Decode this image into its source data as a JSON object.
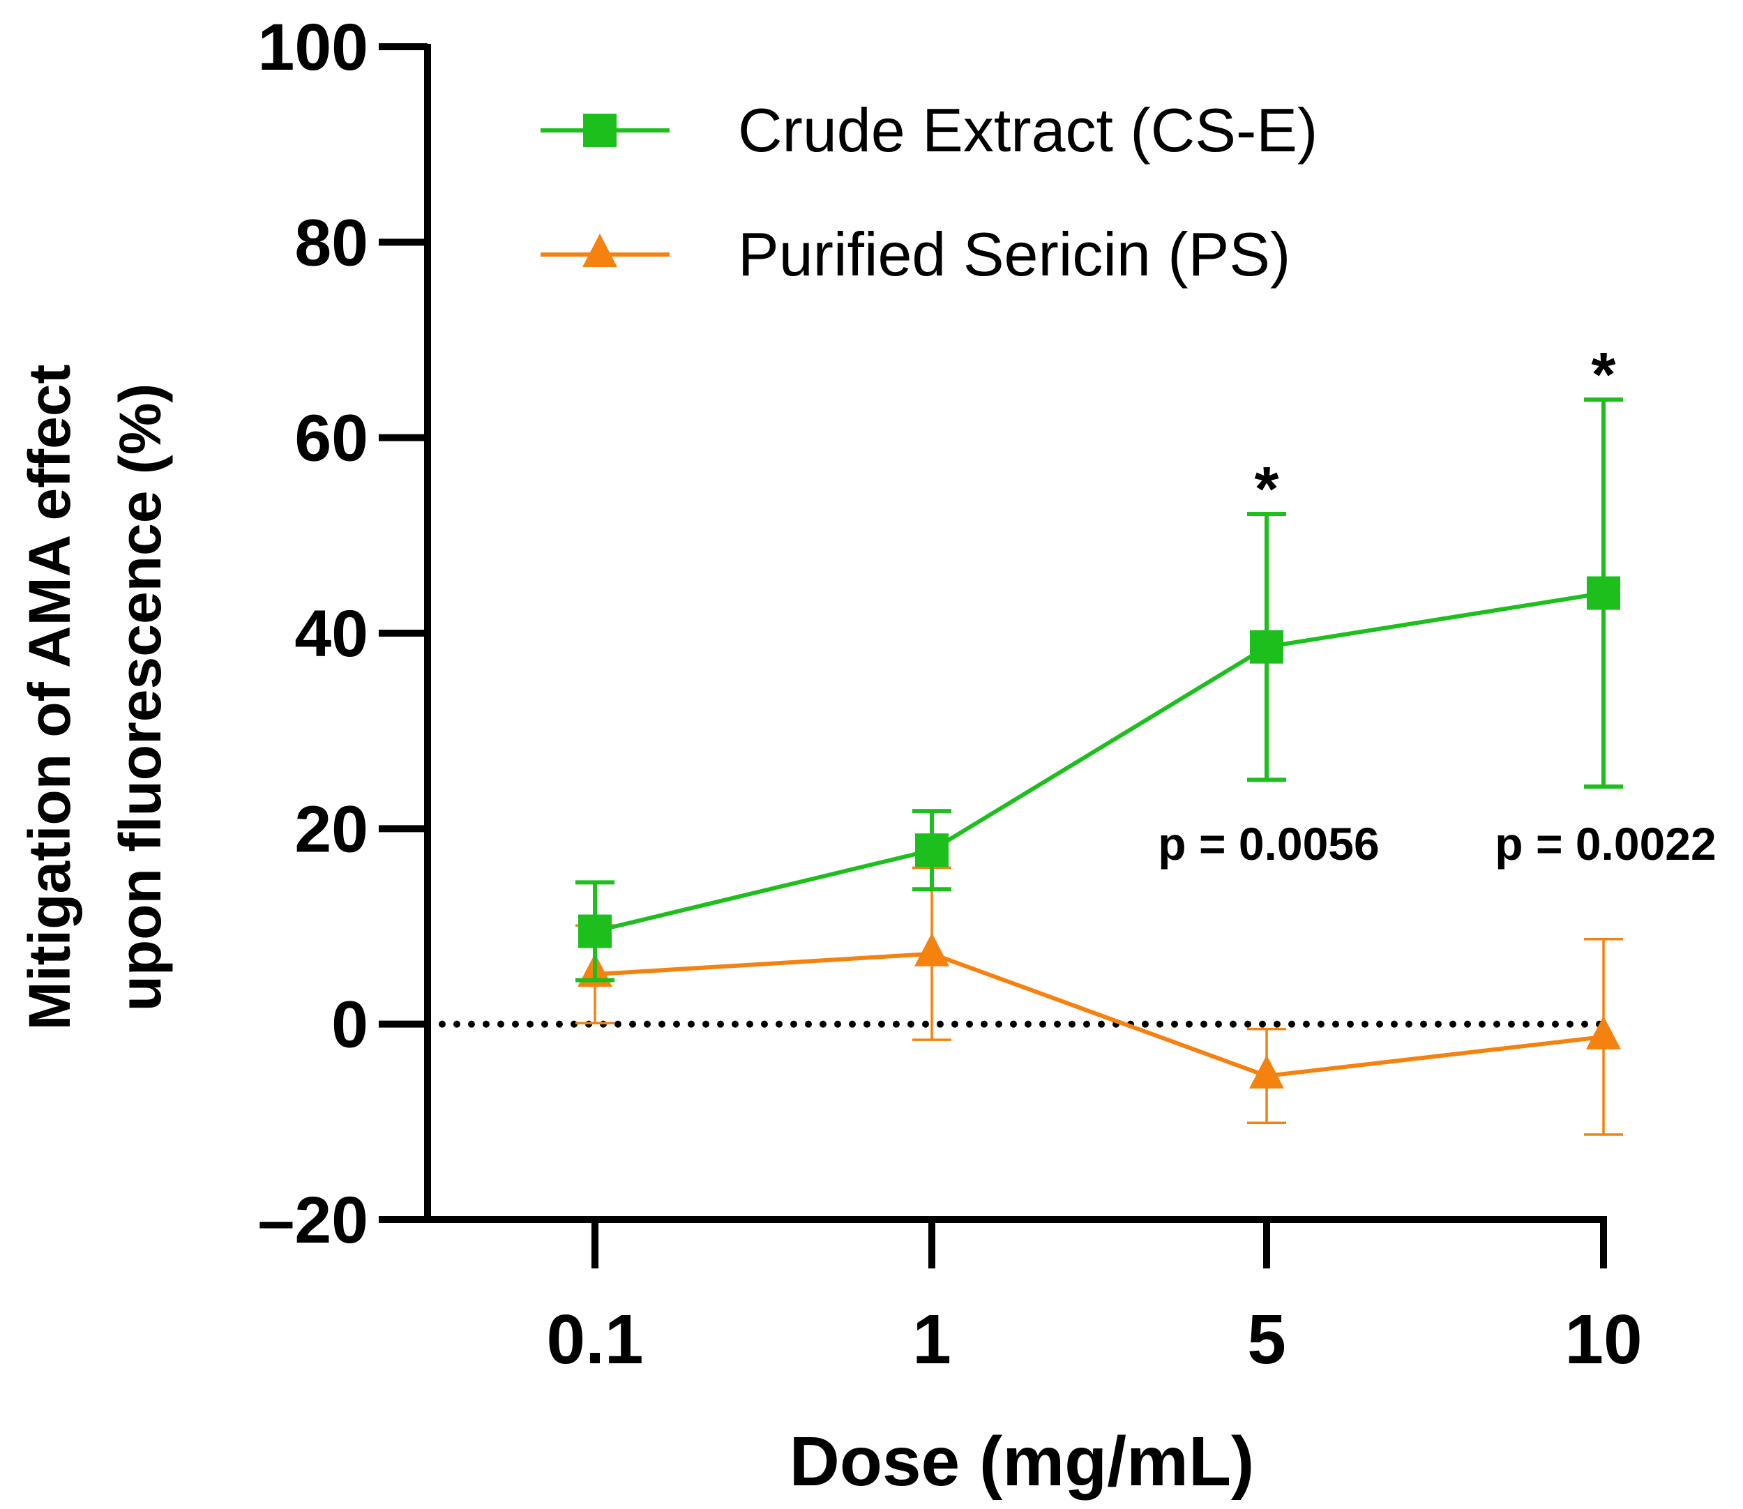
{
  "chart_data": {
    "type": "line",
    "title": "",
    "xlabel": "Dose (mg/mL)",
    "ylabel_lines": [
      "Mitigation of AMA effect",
      "upon fluorescence (%)"
    ],
    "categories": [
      "0.1",
      "1",
      "5",
      "10"
    ],
    "ylim": [
      -20,
      100
    ],
    "yticks": [
      -20,
      0,
      20,
      40,
      60,
      80,
      100
    ],
    "ytick_labels": [
      "–20",
      "0",
      "20",
      "40",
      "60",
      "80",
      "100"
    ],
    "reference_line": {
      "y": 0,
      "style": "dotted"
    },
    "legend_position": "top-center",
    "series": [
      {
        "name": "Crude Extract (CS-E)",
        "color": "#1dbf1d",
        "marker": "square",
        "values": [
          9.5,
          17.8,
          38.6,
          44.1
        ],
        "errors": [
          5.0,
          4.0,
          13.6,
          19.8
        ]
      },
      {
        "name": "Purified Sericin (PS)",
        "color": "#f5820f",
        "marker": "triangle",
        "values": [
          5.1,
          7.2,
          -5.3,
          -1.3
        ],
        "errors": [
          5.0,
          8.8,
          4.8,
          10.0
        ]
      }
    ],
    "annotations": [
      {
        "category": "5",
        "star": "*",
        "p_text": "p = 0.0056"
      },
      {
        "category": "10",
        "star": "*",
        "p_text": "p = 0.0022"
      }
    ]
  }
}
